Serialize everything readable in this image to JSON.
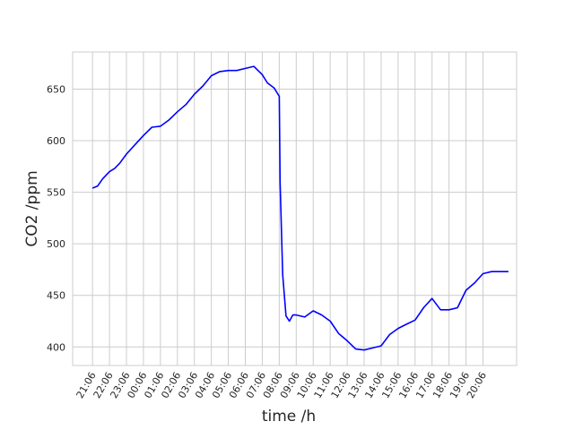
{
  "chart_data": {
    "type": "line",
    "title": "",
    "xlabel": "time /h",
    "ylabel": "CO2  /ppm",
    "grid": true,
    "legend": "none",
    "line_color": "#0000ff",
    "x_ticks": [
      "21:06",
      "22:06",
      "23:06",
      "00:06",
      "01:06",
      "02:06",
      "03:06",
      "04:06",
      "05:06",
      "06:06",
      "07:06",
      "08:06",
      "09:06",
      "10:06",
      "11:06",
      "12:06",
      "13:06",
      "14:06",
      "15:06",
      "16:06",
      "17:06",
      "18:06",
      "19:06",
      "20:06"
    ],
    "y_ticks": [
      400,
      450,
      500,
      550,
      600,
      650
    ],
    "ylim": [
      382,
      686
    ],
    "xlim_hours_from_first_tick": [
      -1.17,
      24.98
    ],
    "series": [
      {
        "x_hours_from_first_tick": [
          0,
          0.3,
          0.6,
          1.0,
          1.3,
          1.6,
          2.0,
          2.5,
          3.0,
          3.5,
          4.0,
          4.5,
          5.0,
          5.5,
          6.0,
          6.5,
          7.0,
          7.5,
          8.0,
          8.5,
          9.0,
          9.5,
          10.0,
          10.3,
          10.7,
          11.0,
          11.05,
          11.2,
          11.4,
          11.6,
          11.8,
          12.0,
          12.5,
          13.0,
          13.5,
          14.0,
          14.5,
          15.0,
          15.5,
          16.0,
          16.5,
          17.0,
          17.5,
          18.0,
          18.5,
          19.0,
          19.5,
          20.0,
          20.5,
          21.0,
          21.5,
          22.0,
          22.5,
          23.0,
          23.5,
          24.0,
          24.5
        ],
        "y": [
          554,
          556,
          563,
          570,
          573,
          578,
          587,
          596,
          605,
          613,
          614,
          620,
          628,
          635,
          645,
          653,
          663,
          667,
          668,
          668,
          670,
          672,
          664,
          656,
          651,
          643,
          560,
          470,
          430,
          425,
          431,
          431,
          429,
          435,
          431,
          425,
          413,
          406,
          398,
          397,
          399,
          401,
          412,
          418,
          422,
          426,
          438,
          447,
          436,
          436,
          438,
          455,
          462,
          471,
          473,
          473,
          473
        ]
      }
    ]
  }
}
